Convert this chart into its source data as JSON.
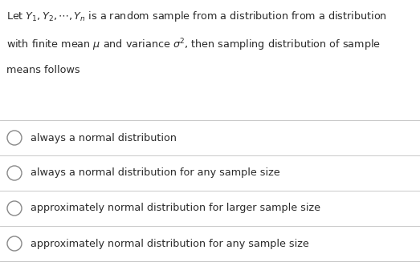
{
  "background_color": "#ffffff",
  "text_color": "#2a2a2a",
  "line_color": "#c8c8c8",
  "question_lines": [
    "Let $Y_1, Y_2, \\cdots, Y_n$ is a random sample from a distribution from a distribution",
    "with finite mean $\\mu$ and variance $\\sigma^2$, then sampling distribution of sample",
    "means follows"
  ],
  "options": [
    "always a normal distribution",
    "always a normal distribution for any sample size",
    "approximately normal distribution for larger sample size",
    "approximately normal distribution for any sample size"
  ],
  "question_fontsize": 9.2,
  "option_fontsize": 9.2,
  "figwidth": 5.23,
  "figheight": 3.32,
  "dpi": 100
}
